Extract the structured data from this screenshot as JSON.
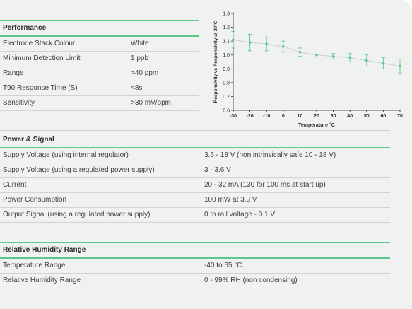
{
  "performance": {
    "title": "Performance",
    "rows": [
      {
        "label": "Electrode Stack Colour",
        "value": "White"
      },
      {
        "label": "Minimum Detection Limit",
        "value": "1 ppb"
      },
      {
        "label": "Range",
        "value": ">40 ppm"
      },
      {
        "label": "T90 Response Time (S)",
        "value": "<8s"
      },
      {
        "label": "Sensitivity",
        "value": ">30 mV/ppm"
      }
    ]
  },
  "power": {
    "title": "Power & Signal",
    "rows": [
      {
        "label": "Supply Voltage (using internal regulator)",
        "value": "3.6 - 18 V (non intrinsically safe 10 - 18 V)"
      },
      {
        "label": "Supply Voltage (using a regulated power supply)",
        "value": "3 - 3.6 V"
      },
      {
        "label": "Current",
        "value": "20 - 32 mA (130 for 100 ms at start up)"
      },
      {
        "label": "Power Consumption",
        "value": "100 mW at 3.3 V"
      },
      {
        "label": "Output Signal (using a regulated power supply)",
        "value": "0 to rail voltage - 0.1 V"
      }
    ]
  },
  "humidity": {
    "title": "Relative Humidity Range",
    "rows": [
      {
        "label": "Temperature Range",
        "value": "-40 to 65 °C"
      },
      {
        "label": "Relative Humidity Range",
        "value": "0 - 99% RH (non condensing)"
      }
    ]
  },
  "chart_data": {
    "type": "line",
    "title": "",
    "xlabel": "Temperature °C",
    "ylabel": "Responsivity vs Responsivity at 20°C",
    "x": [
      -30,
      -20,
      -10,
      0,
      10,
      20,
      30,
      40,
      50,
      60,
      70
    ],
    "x_tick_labels": [
      "-30",
      "-20",
      "-10",
      "0",
      "10",
      "20",
      "30",
      "40",
      "50",
      "60",
      "70"
    ],
    "y_ticks": [
      0.6,
      0.7,
      0.8,
      0.9,
      1.0,
      1.1,
      1.2,
      1.3
    ],
    "y_tick_labels": [
      "0.6",
      "0.7",
      "0.8",
      "0.9",
      "1.0",
      "1.1",
      "1.2",
      "1.3"
    ],
    "xlim": [
      -30,
      70
    ],
    "ylim": [
      0.6,
      1.3
    ],
    "grid": false,
    "series": [
      {
        "values": [
          1.11,
          1.09,
          1.08,
          1.06,
          1.02,
          1.0,
          0.99,
          0.98,
          0.96,
          0.94,
          0.92
        ],
        "error": [
          0.06,
          0.06,
          0.05,
          0.04,
          0.03,
          0.0,
          0.02,
          0.03,
          0.04,
          0.04,
          0.05
        ],
        "color": "#5cc98a"
      }
    ],
    "axis_color": "#2b2b2b"
  }
}
